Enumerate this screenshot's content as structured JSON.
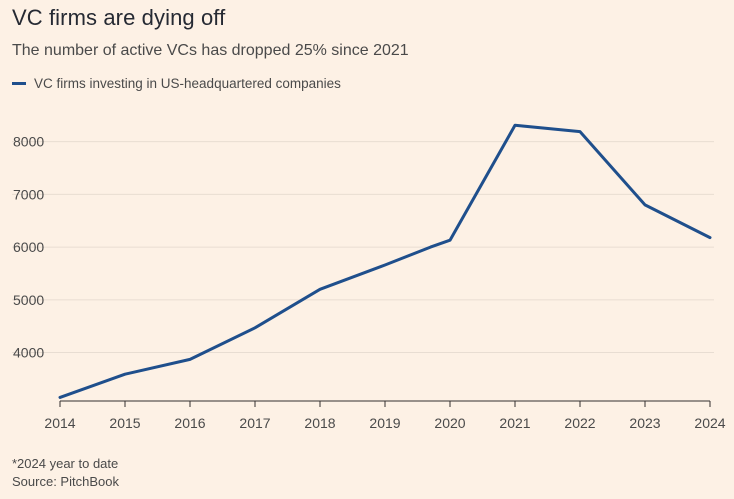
{
  "header": {
    "title": "VC firms are dying off",
    "subtitle": "The number of active VCs has dropped 25% since 2021"
  },
  "legend": {
    "series_label": "VC firms investing in US-headquartered companies",
    "series_color": "#1f4f8c"
  },
  "footer": {
    "note": "*2024 year to date",
    "source": "Source: PitchBook"
  },
  "colors": {
    "background": "#fdf1e5",
    "gridline": "#e8ddd2",
    "axis": "#33302e",
    "text": "#4a4a4a"
  },
  "chart_data": {
    "type": "line",
    "title": "VC firms are dying off",
    "subtitle": "The number of active VCs has dropped 25% since 2021",
    "xlabel": "",
    "ylabel": "",
    "x_ticks": [
      "2014",
      "2015",
      "2016",
      "2017",
      "2018",
      "2019",
      "2020",
      "2021",
      "2022",
      "2023",
      "2024"
    ],
    "y_ticks": [
      4000,
      5000,
      6000,
      7000,
      8000
    ],
    "xlim": [
      2014,
      2024
    ],
    "ylim": [
      3100,
      8600
    ],
    "grid": true,
    "legend_position": "top-left",
    "series": [
      {
        "name": "VC firms investing in US-headquartered companies",
        "color": "#1f4f8c",
        "x": [
          2014,
          2015,
          2016,
          2017,
          2018,
          2019,
          2019.7,
          2020,
          2021,
          2022,
          2023,
          2024
        ],
        "y": [
          3150,
          3590,
          3870,
          4470,
          5200,
          5660,
          6000,
          6130,
          8310,
          8190,
          6800,
          6180
        ]
      }
    ]
  }
}
